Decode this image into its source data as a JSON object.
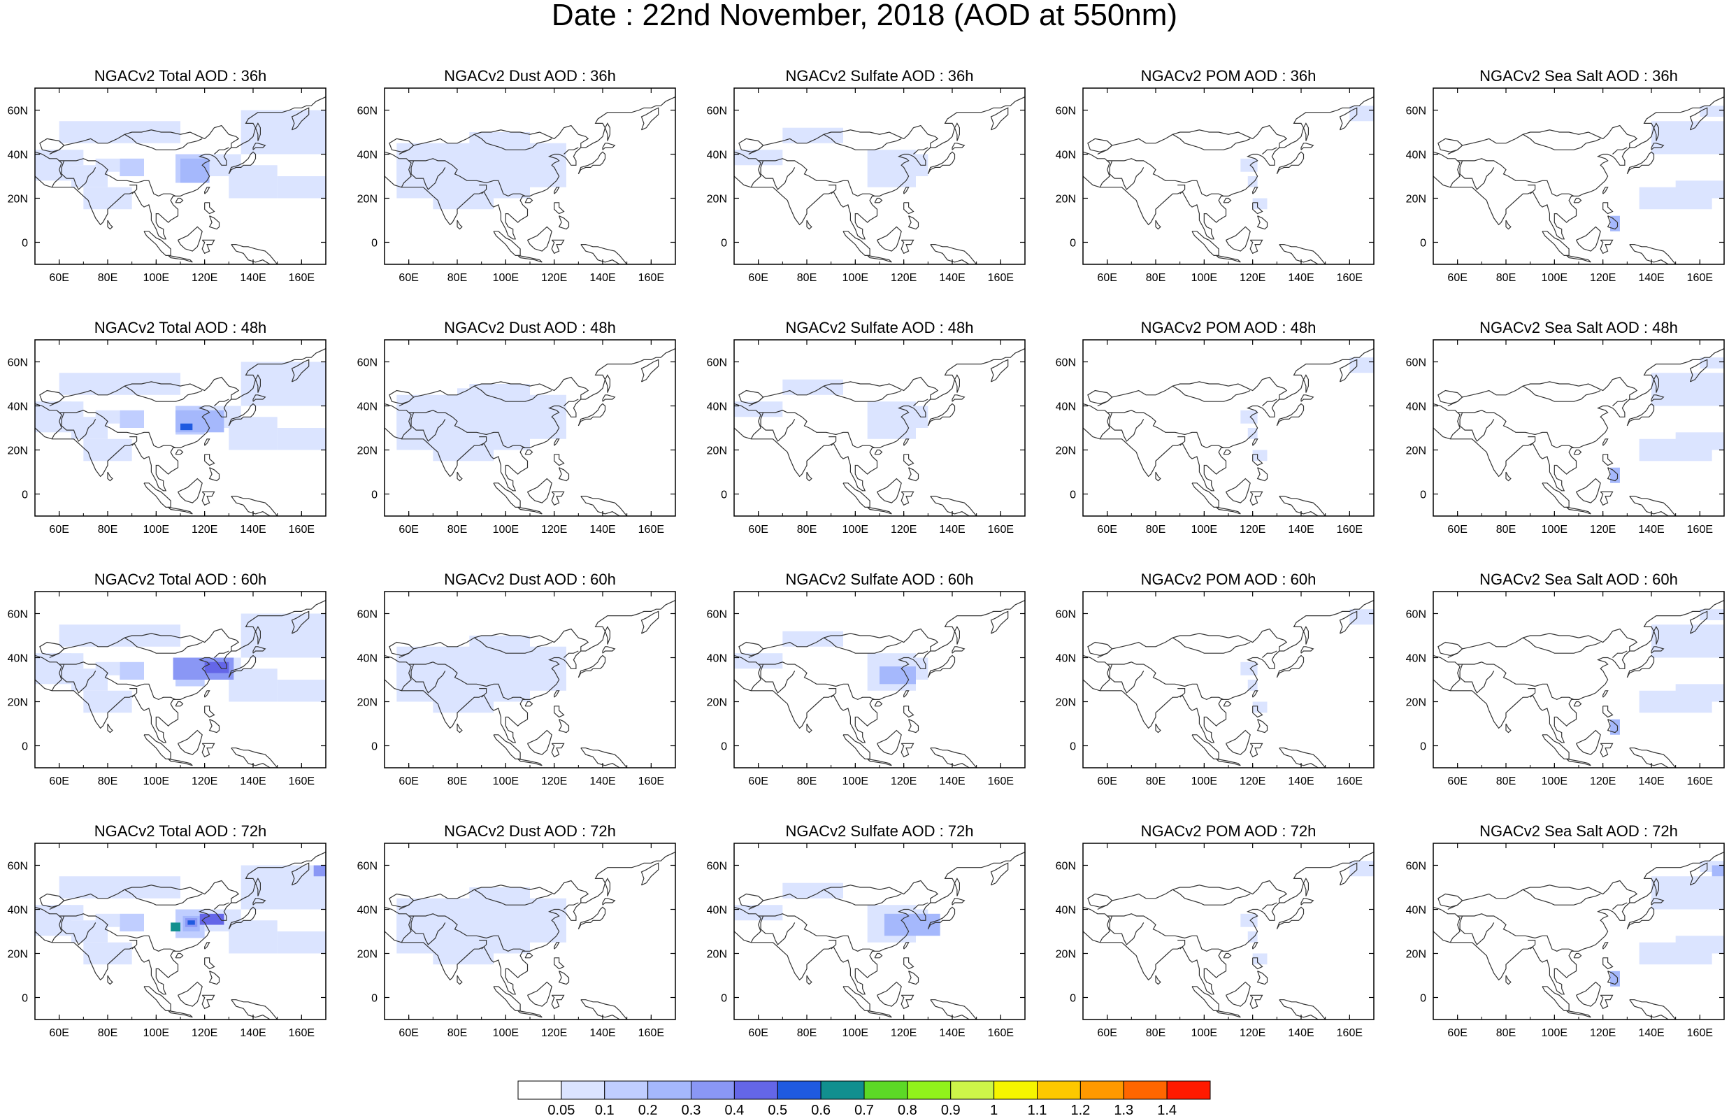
{
  "title": "Date : 22nd November, 2018 (AOD at 550nm)",
  "panels": [
    {
      "title": "NGACv2 Total AOD : 36h",
      "kind": "total",
      "step": 0
    },
    {
      "title": "NGACv2 Dust AOD : 36h",
      "kind": "dust",
      "step": 0
    },
    {
      "title": "NGACv2 Sulfate AOD : 36h",
      "kind": "sulfate",
      "step": 0
    },
    {
      "title": "NGACv2 POM AOD : 36h",
      "kind": "pom",
      "step": 0
    },
    {
      "title": "NGACv2 Sea Salt AOD : 36h",
      "kind": "seasalt",
      "step": 0
    },
    {
      "title": "NGACv2 Total AOD : 48h",
      "kind": "total",
      "step": 1
    },
    {
      "title": "NGACv2 Dust AOD : 48h",
      "kind": "dust",
      "step": 1
    },
    {
      "title": "NGACv2 Sulfate AOD : 48h",
      "kind": "sulfate",
      "step": 1
    },
    {
      "title": "NGACv2 POM AOD : 48h",
      "kind": "pom",
      "step": 1
    },
    {
      "title": "NGACv2 Sea Salt AOD : 48h",
      "kind": "seasalt",
      "step": 1
    },
    {
      "title": "NGACv2 Total AOD : 60h",
      "kind": "total",
      "step": 2
    },
    {
      "title": "NGACv2 Dust AOD : 60h",
      "kind": "dust",
      "step": 2
    },
    {
      "title": "NGACv2 Sulfate AOD : 60h",
      "kind": "sulfate",
      "step": 2
    },
    {
      "title": "NGACv2 POM AOD : 60h",
      "kind": "pom",
      "step": 2
    },
    {
      "title": "NGACv2 Sea Salt AOD : 60h",
      "kind": "seasalt",
      "step": 2
    },
    {
      "title": "NGACv2 Total AOD : 72h",
      "kind": "total",
      "step": 3
    },
    {
      "title": "NGACv2 Dust AOD : 72h",
      "kind": "dust",
      "step": 3
    },
    {
      "title": "NGACv2 Sulfate AOD : 72h",
      "kind": "sulfate",
      "step": 3
    },
    {
      "title": "NGACv2 POM AOD : 72h",
      "kind": "pom",
      "step": 3
    },
    {
      "title": "NGACv2 Sea Salt  AOD : 72h",
      "kind": "seasalt",
      "step": 3
    }
  ],
  "map_extent": {
    "lon_min": 50,
    "lon_max": 170,
    "lat_min": -10,
    "lat_max": 70
  },
  "x_ticks": [
    {
      "value": 60,
      "label": "60E"
    },
    {
      "value": 80,
      "label": "80E"
    },
    {
      "value": 100,
      "label": "100E"
    },
    {
      "value": 120,
      "label": "120E"
    },
    {
      "value": 140,
      "label": "140E"
    },
    {
      "value": 160,
      "label": "160E"
    }
  ],
  "y_ticks": [
    {
      "value": 0,
      "label": "0"
    },
    {
      "value": 20,
      "label": "20N"
    },
    {
      "value": 40,
      "label": "40N"
    },
    {
      "value": 60,
      "label": "60N"
    }
  ],
  "colorbar": {
    "labels": [
      "0.05",
      "0.1",
      "0.2",
      "0.3",
      "0.4",
      "0.5",
      "0.6",
      "0.7",
      "0.8",
      "0.9",
      "1",
      "1.1",
      "1.2",
      "1.3",
      "1.4"
    ],
    "colors": [
      "#ffffff",
      "#dbe4ff",
      "#c0ceff",
      "#a5b8fc",
      "#8a97f5",
      "#6466e8",
      "#1f5ae0",
      "#118f8f",
      "#5cd926",
      "#91f21b",
      "#cdf549",
      "#f5f500",
      "#fdc800",
      "#ff9900",
      "#ff6600",
      "#ff1a00"
    ]
  },
  "colors": {
    "coast": "#333333",
    "frame": "#000000"
  }
}
